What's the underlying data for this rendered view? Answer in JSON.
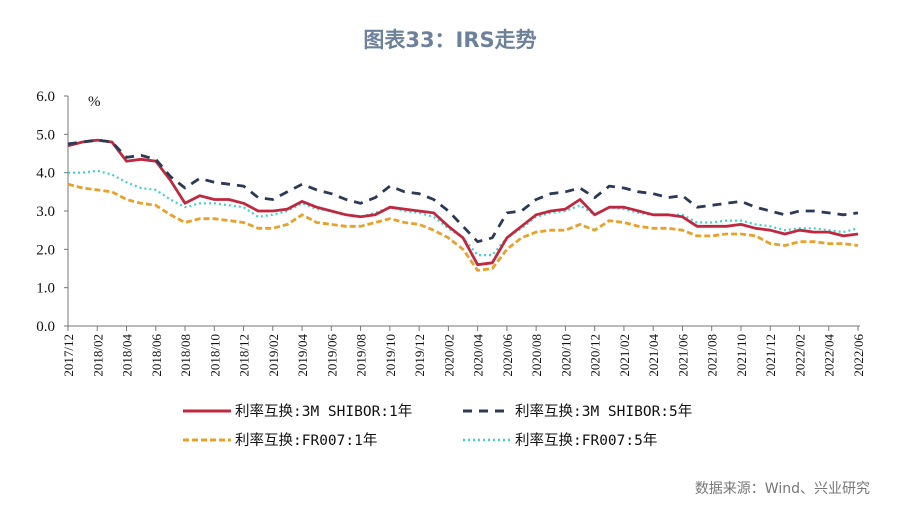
{
  "chart_data": {
    "type": "line",
    "title": "图表33：IRS走势",
    "ylabel": "%",
    "ylim": [
      0,
      6
    ],
    "yticks": [
      "0.0",
      "1.0",
      "2.0",
      "3.0",
      "4.0",
      "5.0",
      "6.0"
    ],
    "xticks": [
      "2017/12",
      "2018/02",
      "2018/04",
      "2018/06",
      "2018/08",
      "2018/10",
      "2018/12",
      "2019/02",
      "2019/04",
      "2019/06",
      "2019/08",
      "2019/10",
      "2019/12",
      "2020/02",
      "2020/04",
      "2020/06",
      "2020/08",
      "2020/10",
      "2020/12",
      "2021/02",
      "2021/04",
      "2021/06",
      "2021/08",
      "2021/10",
      "2021/12",
      "2022/02",
      "2022/04",
      "2022/06"
    ],
    "x": [
      "2017/12",
      "2018/01",
      "2018/02",
      "2018/03",
      "2018/04",
      "2018/05",
      "2018/06",
      "2018/07",
      "2018/08",
      "2018/09",
      "2018/10",
      "2018/11",
      "2018/12",
      "2019/01",
      "2019/02",
      "2019/03",
      "2019/04",
      "2019/05",
      "2019/06",
      "2019/07",
      "2019/08",
      "2019/09",
      "2019/10",
      "2019/11",
      "2019/12",
      "2020/01",
      "2020/02",
      "2020/03",
      "2020/04",
      "2020/05",
      "2020/06",
      "2020/07",
      "2020/08",
      "2020/09",
      "2020/10",
      "2020/11",
      "2020/12",
      "2021/01",
      "2021/02",
      "2021/03",
      "2021/04",
      "2021/05",
      "2021/06",
      "2021/07",
      "2021/08",
      "2021/09",
      "2021/10",
      "2021/11",
      "2021/12",
      "2022/01",
      "2022/02",
      "2022/03",
      "2022/04",
      "2022/05",
      "2022/06"
    ],
    "grid": false,
    "legend": "bottom",
    "series": [
      {
        "name": "利率互换:3M SHIBOR:1年",
        "color": "#c0283f",
        "style": "solid",
        "values": [
          4.7,
          4.8,
          4.85,
          4.8,
          4.3,
          4.35,
          4.3,
          3.8,
          3.2,
          3.4,
          3.3,
          3.3,
          3.2,
          3.0,
          3.0,
          3.05,
          3.25,
          3.1,
          3.0,
          2.9,
          2.85,
          2.9,
          3.1,
          3.05,
          3.0,
          2.95,
          2.6,
          2.3,
          1.6,
          1.65,
          2.3,
          2.6,
          2.9,
          3.0,
          3.05,
          3.3,
          2.9,
          3.1,
          3.1,
          3.0,
          2.9,
          2.9,
          2.85,
          2.6,
          2.6,
          2.6,
          2.65,
          2.55,
          2.5,
          2.4,
          2.5,
          2.45,
          2.45,
          2.35,
          2.4
        ]
      },
      {
        "name": "利率互换:3M SHIBOR:5年",
        "color": "#2c3a55",
        "style": "dash",
        "values": [
          4.75,
          4.8,
          4.85,
          4.8,
          4.4,
          4.45,
          4.35,
          3.9,
          3.6,
          3.85,
          3.75,
          3.7,
          3.65,
          3.35,
          3.3,
          3.5,
          3.7,
          3.55,
          3.45,
          3.3,
          3.2,
          3.35,
          3.65,
          3.5,
          3.45,
          3.3,
          3.0,
          2.6,
          2.2,
          2.3,
          2.95,
          3.0,
          3.3,
          3.45,
          3.5,
          3.6,
          3.35,
          3.65,
          3.6,
          3.5,
          3.45,
          3.35,
          3.4,
          3.1,
          3.15,
          3.2,
          3.25,
          3.1,
          3.0,
          2.9,
          3.0,
          3.0,
          2.95,
          2.9,
          2.95
        ]
      },
      {
        "name": "利率互换:FR007:1年",
        "color": "#e8a12a",
        "style": "shortdash",
        "values": [
          3.7,
          3.6,
          3.55,
          3.5,
          3.3,
          3.2,
          3.15,
          2.9,
          2.7,
          2.8,
          2.8,
          2.75,
          2.7,
          2.55,
          2.55,
          2.65,
          2.9,
          2.7,
          2.65,
          2.6,
          2.6,
          2.7,
          2.8,
          2.7,
          2.65,
          2.5,
          2.3,
          2.0,
          1.45,
          1.5,
          2.0,
          2.3,
          2.45,
          2.5,
          2.5,
          2.65,
          2.5,
          2.75,
          2.7,
          2.6,
          2.55,
          2.55,
          2.5,
          2.35,
          2.35,
          2.4,
          2.4,
          2.35,
          2.15,
          2.1,
          2.2,
          2.2,
          2.15,
          2.15,
          2.1
        ]
      },
      {
        "name": "利率互换:FR007:5年",
        "color": "#3fd0c9",
        "style": "dot",
        "values": [
          4.0,
          4.0,
          4.05,
          3.95,
          3.75,
          3.6,
          3.55,
          3.3,
          3.1,
          3.2,
          3.2,
          3.15,
          3.1,
          2.85,
          2.9,
          3.0,
          3.2,
          3.05,
          3.0,
          2.9,
          2.85,
          2.95,
          3.1,
          3.0,
          2.95,
          2.85,
          2.55,
          2.3,
          1.85,
          1.85,
          2.3,
          2.55,
          2.85,
          2.95,
          3.0,
          3.15,
          2.9,
          3.1,
          3.05,
          2.95,
          2.9,
          2.9,
          2.9,
          2.7,
          2.7,
          2.75,
          2.75,
          2.65,
          2.6,
          2.5,
          2.55,
          2.55,
          2.5,
          2.45,
          2.55
        ]
      }
    ]
  },
  "source": "数据来源：Wind、兴业研究"
}
